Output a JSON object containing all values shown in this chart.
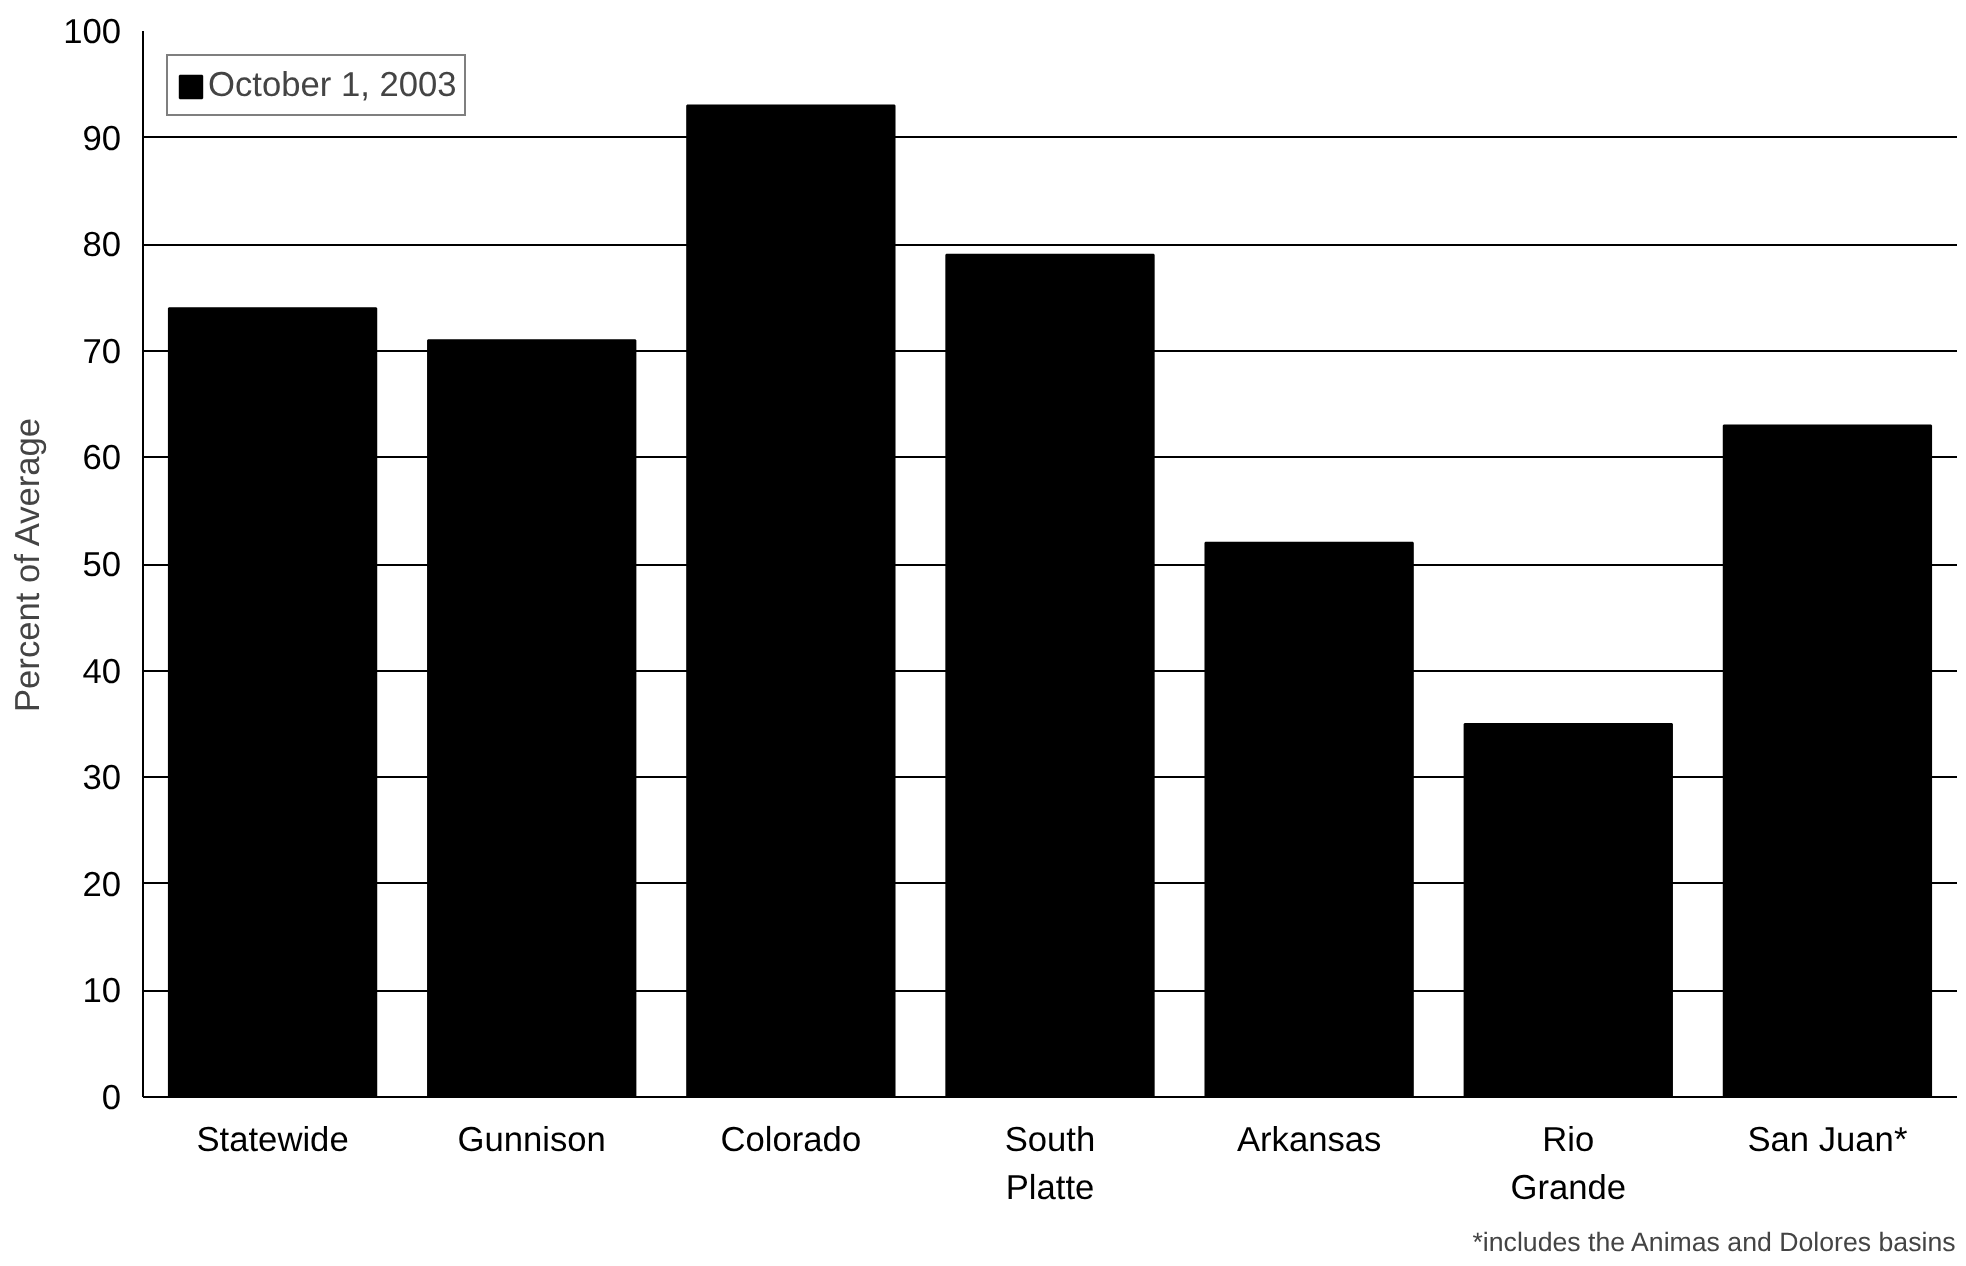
{
  "chart_data": {
    "type": "bar",
    "ylabel": "Percent of Average",
    "categories": [
      "Statewide",
      "Gunnison",
      "Colorado",
      "South Platte",
      "Arkansas",
      "Rio Grande",
      "San Juan*"
    ],
    "series": [
      {
        "name": "October 1, 2003",
        "color": "#000000",
        "values": [
          74,
          71,
          93,
          79,
          52,
          35,
          63
        ]
      }
    ],
    "ylim": [
      0,
      100
    ],
    "yticks": [
      0,
      10,
      20,
      30,
      40,
      50,
      60,
      70,
      80,
      90,
      100
    ],
    "grid": "y",
    "legend": "top left",
    "annotations": [
      "*includes the Animas and Dolores basins"
    ]
  }
}
